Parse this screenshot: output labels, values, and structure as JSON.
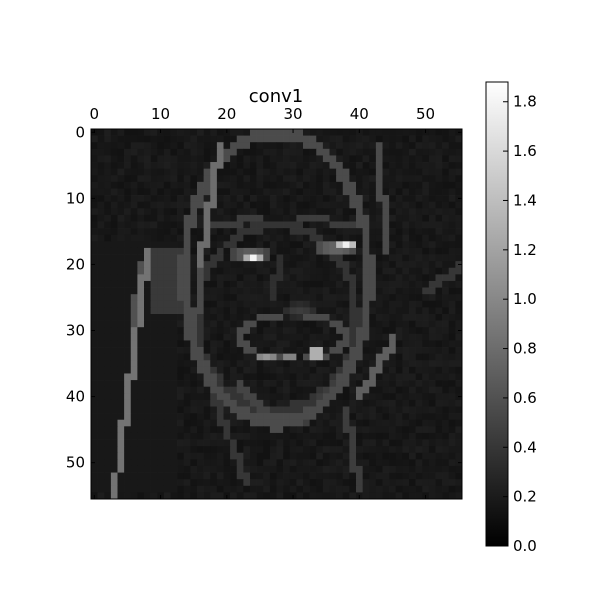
{
  "chart_data": {
    "type": "heatmap",
    "title": "conv1",
    "colormap": "gray",
    "grid_size": [
      56,
      56
    ],
    "x_ticks": [
      "0",
      "10",
      "20",
      "30",
      "40",
      "50"
    ],
    "x_tick_values": [
      0,
      10,
      20,
      30,
      40,
      50
    ],
    "y_ticks": [
      "0",
      "10",
      "20",
      "30",
      "40",
      "50"
    ],
    "y_tick_values": [
      0,
      10,
      20,
      30,
      40,
      50
    ],
    "xlim": [
      -0.5,
      55.5
    ],
    "ylim": [
      55.5,
      -0.5
    ],
    "x_axis_position": "top",
    "colorbar": {
      "vmin": 0.0,
      "vmax": 1.88,
      "ticks": [
        "0.0",
        "0.2",
        "0.4",
        "0.6",
        "0.8",
        "1.0",
        "1.2",
        "1.4",
        "1.6",
        "1.8"
      ],
      "tick_values": [
        0.0,
        0.2,
        0.4,
        0.6,
        0.8,
        1.0,
        1.2,
        1.4,
        1.6,
        1.8
      ],
      "position": "right"
    },
    "content": "activation map of a smiling face"
  }
}
